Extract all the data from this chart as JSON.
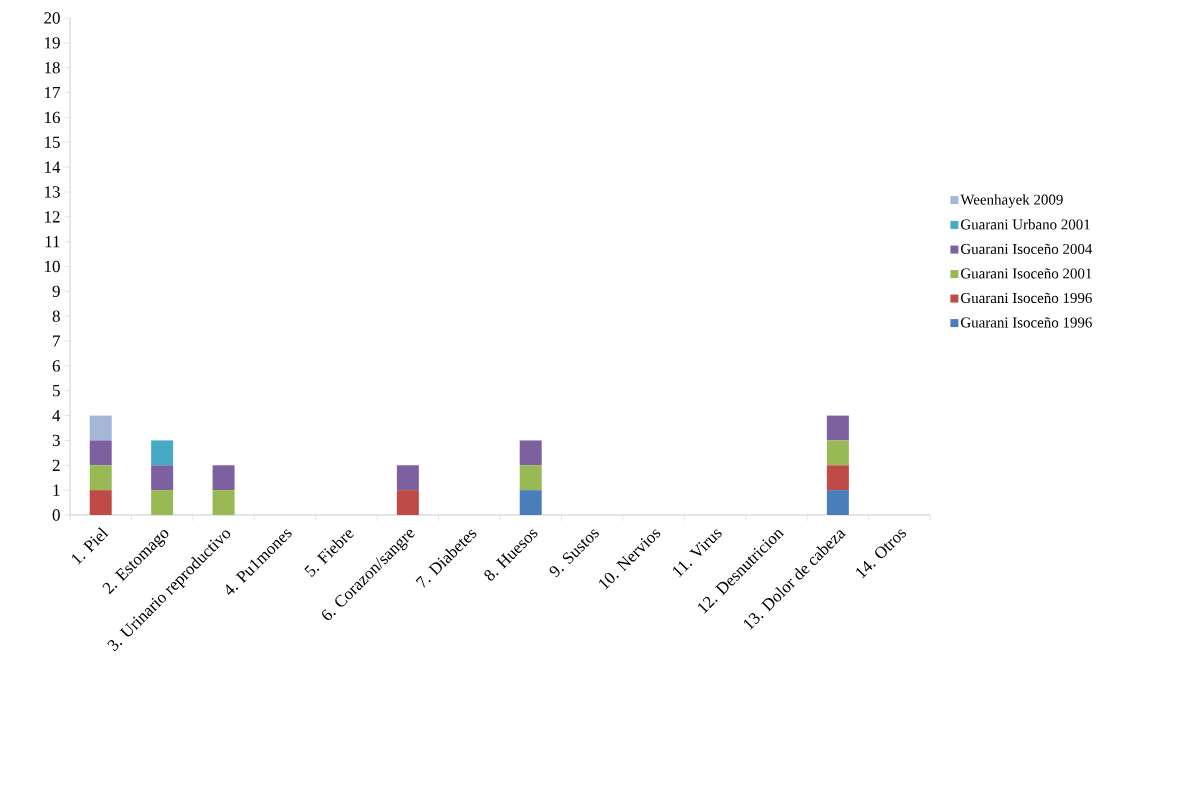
{
  "chart_data": {
    "type": "bar",
    "stacked": true,
    "categories": [
      "1. Piel",
      "2. Estomago",
      "3. Urinario reproductivo",
      "4. Pu1mones",
      "5. Fiebre",
      "6. Corazon/sangre",
      "7. Diabetes",
      "8. Huesos",
      "9. Sustos",
      "10. Nervios",
      "11. Virus",
      "12. Desnutricion",
      "13. Dolor de cabeza",
      "14. Otros"
    ],
    "series": [
      {
        "name": "Guarani  Isoceño 1996",
        "color": "#4a7ebb",
        "values": [
          0,
          0,
          0,
          0,
          0,
          0,
          0,
          1,
          0,
          0,
          0,
          0,
          1,
          0
        ]
      },
      {
        "name": "Guarani Isoceño 1996",
        "color": "#be4b48",
        "values": [
          1,
          0,
          0,
          0,
          0,
          1,
          0,
          0,
          0,
          0,
          0,
          0,
          1,
          0
        ]
      },
      {
        "name": "Guarani Isoceño 2001",
        "color": "#98b954",
        "values": [
          1,
          1,
          1,
          0,
          0,
          0,
          0,
          1,
          0,
          0,
          0,
          0,
          1,
          0
        ]
      },
      {
        "name": "Guarani Isoceño 2004",
        "color": "#7d60a0",
        "values": [
          1,
          1,
          1,
          0,
          0,
          1,
          0,
          1,
          0,
          0,
          0,
          0,
          1,
          0
        ]
      },
      {
        "name": "Guarani Urbano 2001",
        "color": "#46aac5",
        "values": [
          0,
          1,
          0,
          0,
          0,
          0,
          0,
          0,
          0,
          0,
          0,
          0,
          0,
          0
        ]
      },
      {
        "name": "Weenhayek 2009",
        "color": "#a5b6d8",
        "values": [
          1,
          0,
          0,
          0,
          0,
          0,
          0,
          0,
          0,
          0,
          0,
          0,
          0,
          0
        ]
      }
    ],
    "ylim": [
      0,
      20
    ],
    "yticks": [
      0,
      1,
      2,
      3,
      4,
      5,
      6,
      7,
      8,
      9,
      10,
      11,
      12,
      13,
      14,
      15,
      16,
      17,
      18,
      19,
      20
    ],
    "grid": false,
    "legend": "right"
  }
}
